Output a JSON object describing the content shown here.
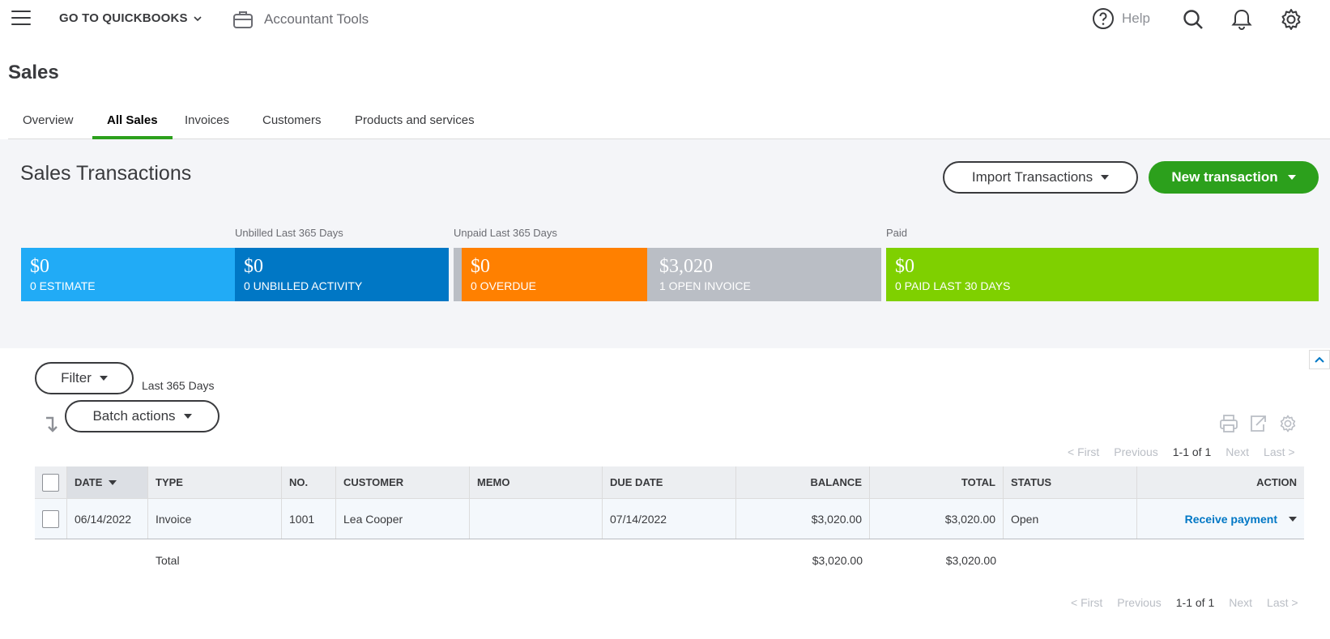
{
  "topbar": {
    "goto_label": "GO TO QUICKBOOKS",
    "accountant_tools": "Accountant Tools",
    "help": "Help",
    "icons": [
      "menu-icon",
      "chevron-down-icon",
      "briefcase-icon",
      "help-icon",
      "search-icon",
      "bell-icon",
      "gear-icon"
    ]
  },
  "page_title": "Sales",
  "tabs": [
    {
      "label": "Overview",
      "active": false
    },
    {
      "label": "All Sales",
      "active": true
    },
    {
      "label": "Invoices",
      "active": false
    },
    {
      "label": "Customers",
      "active": false
    },
    {
      "label": "Products and services",
      "active": false
    }
  ],
  "panel": {
    "title": "Sales Transactions",
    "import_label": "Import Transactions",
    "new_label": "New transaction",
    "captions": {
      "unbilled": "Unbilled Last 365 Days",
      "unpaid": "Unpaid Last 365 Days",
      "paid": "Paid"
    },
    "tiles": [
      {
        "amount": "$0",
        "label": "0 ESTIMATE",
        "color": "#21abf6"
      },
      {
        "amount": "$0",
        "label": "0 UNBILLED ACTIVITY",
        "color": "#0077c5"
      },
      {
        "amount": "$0",
        "label": "0 OVERDUE",
        "color": "#ff8000"
      },
      {
        "amount": "$3,020",
        "label": "1 OPEN INVOICE",
        "color": "#babec5"
      },
      {
        "amount": "$0",
        "label": "0 PAID LAST 30 DAYS",
        "color": "#7fd000"
      }
    ]
  },
  "filter": {
    "filter_label": "Filter",
    "range": "Last 365 Days",
    "batch_label": "Batch actions"
  },
  "pager": {
    "first": "< First",
    "previous": "Previous",
    "range": "1-1 of 1",
    "next": "Next",
    "last": "Last >"
  },
  "table": {
    "headers": {
      "date": "DATE",
      "type": "TYPE",
      "no": "NO.",
      "customer": "CUSTOMER",
      "memo": "MEMO",
      "due_date": "DUE DATE",
      "balance": "BALANCE",
      "total": "TOTAL",
      "status": "STATUS",
      "action": "ACTION"
    },
    "rows": [
      {
        "date": "06/14/2022",
        "type": "Invoice",
        "no": "1001",
        "customer": "Lea Cooper",
        "memo": "",
        "due_date": "07/14/2022",
        "balance": "$3,020.00",
        "total": "$3,020.00",
        "status": "Open",
        "action": "Receive payment"
      }
    ],
    "totals": {
      "label": "Total",
      "balance": "$3,020.00",
      "total": "$3,020.00"
    }
  },
  "colors": {
    "brand_green": "#2ca01c",
    "link_blue": "#0077c5"
  }
}
